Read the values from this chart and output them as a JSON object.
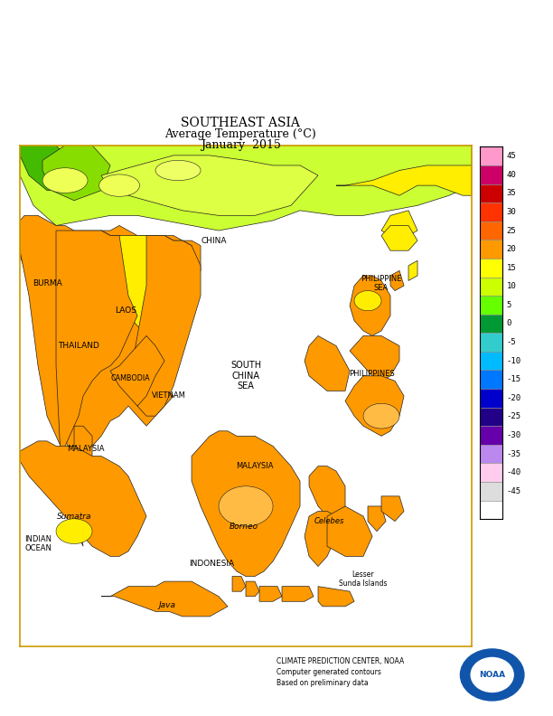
{
  "title_line1": "SOUTHEAST ASIA",
  "title_line2": "Average Temperature (°C)",
  "title_line3": "January  2015",
  "colorbar_labels": [
    45,
    40,
    35,
    30,
    25,
    20,
    15,
    10,
    5,
    0,
    -5,
    -10,
    -15,
    -20,
    -25,
    -30,
    -35,
    -40,
    -45
  ],
  "colorbar_colors": [
    "#FF99CC",
    "#CC0066",
    "#CC0000",
    "#FF3300",
    "#FF6600",
    "#FF9900",
    "#FFFF00",
    "#CCFF00",
    "#66FF00",
    "#009933",
    "#33CCCC",
    "#00BBFF",
    "#0077FF",
    "#0000CC",
    "#220088",
    "#6600AA",
    "#BB88EE",
    "#FFCCEE",
    "#DDDDDD",
    "#888888"
  ],
  "map_border_color": "#CC9900",
  "background": "#FFFFFF",
  "noaa_text": "CLIMATE PREDICTION CENTER, NOAA\nComputer generated contours\nBased on preliminary data",
  "fig_width": 6.12,
  "fig_height": 7.92,
  "dpi": 100
}
